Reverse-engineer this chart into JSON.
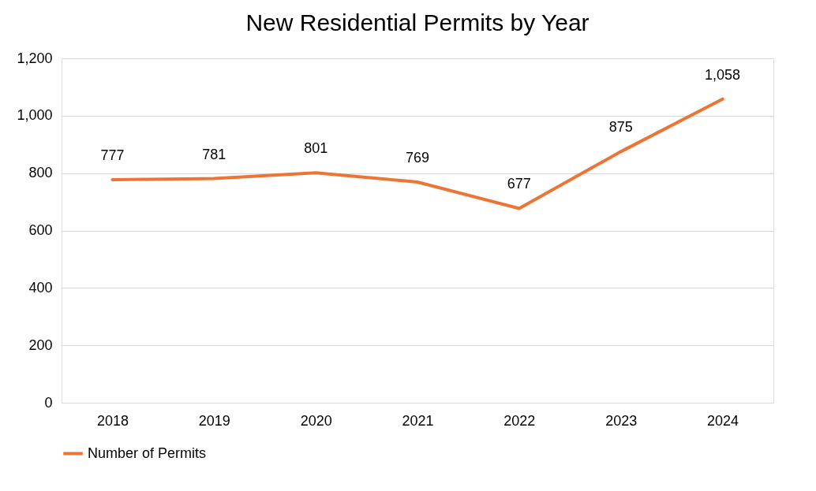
{
  "chart_data": {
    "type": "line",
    "title": "New Residential Permits by Year",
    "categories": [
      "2018",
      "2019",
      "2020",
      "2021",
      "2022",
      "2023",
      "2024"
    ],
    "series": [
      {
        "name": "Number of Permits",
        "color": "#ec7434",
        "values": [
          777,
          781,
          801,
          769,
          677,
          875,
          1058
        ],
        "value_labels": [
          "777",
          "781",
          "801",
          "769",
          "677",
          "875",
          "1,058"
        ]
      }
    ],
    "ylim": [
      0,
      1200
    ],
    "yticks": [
      0,
      200,
      400,
      600,
      800,
      {
        "value": 1000,
        "label": "1,000"
      },
      {
        "value": 1200,
        "label": "1,200"
      }
    ],
    "grid": "y",
    "legend": "bottom",
    "marker": "none",
    "line_style": "solid"
  }
}
